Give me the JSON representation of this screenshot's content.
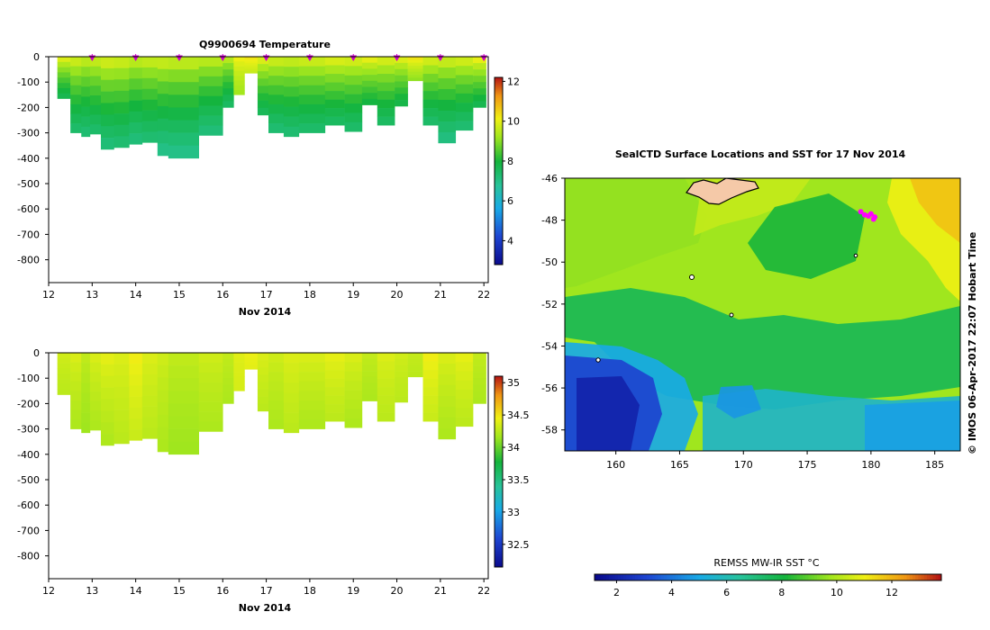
{
  "chart_data": [
    {
      "type": "heatmap",
      "title": "Q9900694  Temperature",
      "xlabel": "Nov 2014",
      "x_ticks": [
        12,
        13,
        14,
        15,
        16,
        17,
        18,
        19,
        20,
        21,
        22
      ],
      "xlim": [
        12,
        22.1
      ],
      "y_ticks": [
        0,
        -100,
        -200,
        -300,
        -400,
        -500,
        -600,
        -700,
        -800
      ],
      "ylim": [
        -890,
        0
      ],
      "colorbar": {
        "ticks": [
          4,
          6,
          8,
          10,
          12
        ],
        "range": [
          2.8,
          12.2
        ]
      },
      "profile_markers_x": [
        13,
        14,
        15,
        16,
        17,
        18,
        19,
        20,
        21,
        22
      ],
      "marker_color": "#cc00cc",
      "profiles": [
        {
          "t0": 12.2,
          "t1": 12.5,
          "depth": 165,
          "surface": 10.4,
          "bottom": 7.6
        },
        {
          "t0": 12.5,
          "t1": 12.75,
          "depth": 300,
          "surface": 10.2,
          "bottom": 7.3
        },
        {
          "t0": 12.75,
          "t1": 12.95,
          "depth": 315,
          "surface": 10.0,
          "bottom": 7.2
        },
        {
          "t0": 12.95,
          "t1": 13.2,
          "depth": 305,
          "surface": 10.1,
          "bottom": 7.3
        },
        {
          "t0": 13.2,
          "t1": 13.5,
          "depth": 365,
          "surface": 10.3,
          "bottom": 7.1
        },
        {
          "t0": 13.5,
          "t1": 13.85,
          "depth": 358,
          "surface": 10.2,
          "bottom": 7.2
        },
        {
          "t0": 13.85,
          "t1": 14.15,
          "depth": 345,
          "surface": 10.0,
          "bottom": 7.1
        },
        {
          "t0": 14.15,
          "t1": 14.5,
          "depth": 338,
          "surface": 10.1,
          "bottom": 7.2
        },
        {
          "t0": 14.5,
          "t1": 14.75,
          "depth": 390,
          "surface": 10.2,
          "bottom": 6.9
        },
        {
          "t0": 14.75,
          "t1": 15.45,
          "depth": 400,
          "surface": 10.1,
          "bottom": 6.9
        },
        {
          "t0": 15.45,
          "t1": 16.0,
          "depth": 310,
          "surface": 10.0,
          "bottom": 7.1
        },
        {
          "t0": 16.0,
          "t1": 16.25,
          "depth": 200,
          "surface": 9.9,
          "bottom": 7.4
        },
        {
          "t0": 16.25,
          "t1": 16.5,
          "depth": 150,
          "surface": 10.3,
          "bottom": 9.2
        },
        {
          "t0": 16.5,
          "t1": 16.8,
          "depth": 65,
          "surface": 10.5,
          "bottom": 9.6
        },
        {
          "t0": 16.8,
          "t1": 17.05,
          "depth": 230,
          "surface": 10.4,
          "bottom": 7.5
        },
        {
          "t0": 17.05,
          "t1": 17.4,
          "depth": 300,
          "surface": 10.2,
          "bottom": 7.2
        },
        {
          "t0": 17.4,
          "t1": 17.75,
          "depth": 315,
          "surface": 10.1,
          "bottom": 7.2
        },
        {
          "t0": 17.75,
          "t1": 18.35,
          "depth": 300,
          "surface": 10.2,
          "bottom": 7.3
        },
        {
          "t0": 18.35,
          "t1": 18.8,
          "depth": 270,
          "surface": 10.4,
          "bottom": 7.4
        },
        {
          "t0": 18.8,
          "t1": 19.2,
          "depth": 295,
          "surface": 10.3,
          "bottom": 7.3
        },
        {
          "t0": 19.2,
          "t1": 19.55,
          "depth": 190,
          "surface": 10.5,
          "bottom": 7.8
        },
        {
          "t0": 19.55,
          "t1": 19.95,
          "depth": 270,
          "surface": 10.3,
          "bottom": 7.4
        },
        {
          "t0": 19.95,
          "t1": 20.25,
          "depth": 195,
          "surface": 10.4,
          "bottom": 7.7
        },
        {
          "t0": 20.25,
          "t1": 20.6,
          "depth": 95,
          "surface": 10.6,
          "bottom": 9.0
        },
        {
          "t0": 20.6,
          "t1": 20.95,
          "depth": 270,
          "surface": 10.3,
          "bottom": 7.3
        },
        {
          "t0": 20.95,
          "t1": 21.35,
          "depth": 340,
          "surface": 10.2,
          "bottom": 7.0
        },
        {
          "t0": 21.35,
          "t1": 21.75,
          "depth": 290,
          "surface": 10.3,
          "bottom": 7.2
        },
        {
          "t0": 21.75,
          "t1": 22.05,
          "depth": 200,
          "surface": 10.6,
          "bottom": 7.6
        }
      ]
    },
    {
      "type": "heatmap",
      "title": "",
      "xlabel": "Nov 2014",
      "x_ticks": [
        12,
        13,
        14,
        15,
        16,
        17,
        18,
        19,
        20,
        21,
        22
      ],
      "xlim": [
        12,
        22.1
      ],
      "y_ticks": [
        0,
        -100,
        -200,
        -300,
        -400,
        -500,
        -600,
        -700,
        -800
      ],
      "ylim": [
        -890,
        0
      ],
      "colorbar": {
        "ticks": [
          32.5,
          33,
          33.5,
          34,
          34.5,
          35
        ],
        "range": [
          32.15,
          35.1
        ]
      },
      "profiles": [
        {
          "t0": 12.2,
          "t1": 12.5,
          "depth": 165,
          "surface": 34.35,
          "bottom": 34.25
        },
        {
          "t0": 12.5,
          "t1": 12.75,
          "depth": 300,
          "surface": 34.4,
          "bottom": 34.2
        },
        {
          "t0": 12.75,
          "t1": 12.95,
          "depth": 315,
          "surface": 34.3,
          "bottom": 34.15
        },
        {
          "t0": 12.95,
          "t1": 13.2,
          "depth": 305,
          "surface": 34.4,
          "bottom": 34.2
        },
        {
          "t0": 13.2,
          "t1": 13.5,
          "depth": 365,
          "surface": 34.45,
          "bottom": 34.2
        },
        {
          "t0": 13.5,
          "t1": 13.85,
          "depth": 358,
          "surface": 34.4,
          "bottom": 34.25
        },
        {
          "t0": 13.85,
          "t1": 14.15,
          "depth": 345,
          "surface": 34.5,
          "bottom": 34.3
        },
        {
          "t0": 14.15,
          "t1": 14.5,
          "depth": 338,
          "surface": 34.4,
          "bottom": 34.25
        },
        {
          "t0": 14.5,
          "t1": 14.75,
          "depth": 390,
          "surface": 34.35,
          "bottom": 34.2
        },
        {
          "t0": 14.75,
          "t1": 15.45,
          "depth": 400,
          "surface": 34.3,
          "bottom": 34.15
        },
        {
          "t0": 15.45,
          "t1": 16.0,
          "depth": 310,
          "surface": 34.35,
          "bottom": 34.2
        },
        {
          "t0": 16.0,
          "t1": 16.25,
          "depth": 200,
          "surface": 34.3,
          "bottom": 34.2
        },
        {
          "t0": 16.25,
          "t1": 16.5,
          "depth": 150,
          "surface": 34.4,
          "bottom": 34.35
        },
        {
          "t0": 16.5,
          "t1": 16.8,
          "depth": 65,
          "surface": 34.45,
          "bottom": 34.4
        },
        {
          "t0": 16.8,
          "t1": 17.05,
          "depth": 230,
          "surface": 34.4,
          "bottom": 34.25
        },
        {
          "t0": 17.05,
          "t1": 17.4,
          "depth": 300,
          "surface": 34.35,
          "bottom": 34.2
        },
        {
          "t0": 17.4,
          "t1": 17.75,
          "depth": 315,
          "surface": 34.4,
          "bottom": 34.25
        },
        {
          "t0": 17.75,
          "t1": 18.35,
          "depth": 300,
          "surface": 34.4,
          "bottom": 34.2
        },
        {
          "t0": 18.35,
          "t1": 18.8,
          "depth": 270,
          "surface": 34.45,
          "bottom": 34.25
        },
        {
          "t0": 18.8,
          "t1": 19.2,
          "depth": 295,
          "surface": 34.4,
          "bottom": 34.2
        },
        {
          "t0": 19.2,
          "t1": 19.55,
          "depth": 190,
          "surface": 34.3,
          "bottom": 34.2
        },
        {
          "t0": 19.55,
          "t1": 19.95,
          "depth": 270,
          "surface": 34.4,
          "bottom": 34.25
        },
        {
          "t0": 19.95,
          "t1": 20.25,
          "depth": 195,
          "surface": 34.35,
          "bottom": 34.25
        },
        {
          "t0": 20.25,
          "t1": 20.6,
          "depth": 95,
          "surface": 34.3,
          "bottom": 34.25
        },
        {
          "t0": 20.6,
          "t1": 20.95,
          "depth": 270,
          "surface": 34.5,
          "bottom": 34.3
        },
        {
          "t0": 20.95,
          "t1": 21.35,
          "depth": 340,
          "surface": 34.4,
          "bottom": 34.2
        },
        {
          "t0": 21.35,
          "t1": 21.75,
          "depth": 290,
          "surface": 34.45,
          "bottom": 34.25
        },
        {
          "t0": 21.75,
          "t1": 22.05,
          "depth": 200,
          "surface": 34.3,
          "bottom": 34.2
        }
      ]
    },
    {
      "type": "heatmap",
      "title": "SealCTD Surface Locations and SST for 17 Nov 2014",
      "xlim": [
        156,
        187
      ],
      "ylim": [
        -59,
        -46
      ],
      "x_ticks": [
        160,
        165,
        170,
        175,
        180,
        185
      ],
      "y_ticks": [
        -46,
        -48,
        -50,
        -52,
        -54,
        -56,
        -58
      ],
      "x_tick_labels": [
        "160",
        "165",
        "170",
        "175",
        "180",
        "185"
      ],
      "y_tick_labels": [
        "-46",
        "-48",
        "-50",
        "-52",
        "-54",
        "-56",
        "-58"
      ],
      "colorbar": {
        "label": "REMSS MW-IR SST °C",
        "ticks": [
          2,
          4,
          6,
          8,
          10,
          12
        ],
        "range": [
          1.2,
          13.8
        ]
      },
      "side_text": "© IMOS 06-Apr-2017 22:07 Hobart Time",
      "seal_locations": [
        {
          "lon": 179.2,
          "lat": -47.6
        },
        {
          "lon": 179.5,
          "lat": -47.75
        },
        {
          "lon": 179.8,
          "lat": -47.8
        },
        {
          "lon": 180.0,
          "lat": -47.7
        },
        {
          "lon": 180.2,
          "lat": -47.95
        },
        {
          "lon": 180.3,
          "lat": -47.85
        }
      ],
      "marker_color": "#ff00ff",
      "land_color": "#f5c9a8"
    }
  ]
}
